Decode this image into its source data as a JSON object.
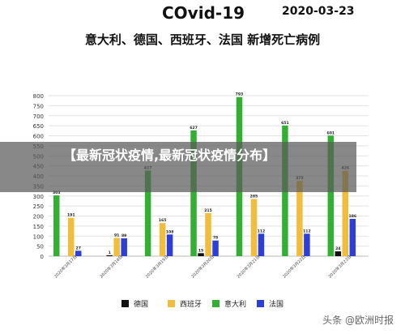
{
  "header": {
    "left": "COvid-19",
    "right": "2020-03-23",
    "subtitle": "意大利、德国、西班牙、法国 新增死亡病例"
  },
  "overlay_title": "【最新冠状疫情,最新冠状疫情分布】",
  "watermark": "头条 @欧洲时报",
  "colors": {
    "germany": "#111111",
    "spain": "#f0bd3c",
    "italy": "#33b033",
    "france": "#2d3fd6"
  },
  "chart_data": {
    "type": "bar",
    "title": "意大利、德国、西班牙、法国 新增死亡病例",
    "categories": [
      "2020年3月17日",
      "2020年3月18日",
      "2020年3月19日",
      "2020年3月20日",
      "2020年3月21日",
      "2020年3月22日",
      "2020年3月23日"
    ],
    "series": [
      {
        "name": "德国",
        "values": [
          null,
          1,
          null,
          15,
          null,
          null,
          24
        ]
      },
      {
        "name": "西班牙",
        "values": [
          191,
          91,
          165,
          215,
          285,
          375,
          426
        ]
      },
      {
        "name": "意大利",
        "values": [
          303,
          null,
          427,
          627,
          793,
          651,
          601
        ]
      },
      {
        "name": "法国",
        "values": [
          27,
          89,
          108,
          78,
          112,
          112,
          186
        ]
      }
    ],
    "ylim": [
      0,
      800
    ],
    "yticks": [
      0,
      50,
      100,
      150,
      200,
      250,
      300,
      350,
      400,
      450,
      500,
      550,
      600,
      650,
      700,
      750,
      800
    ],
    "grid": true,
    "legend": "bottom"
  }
}
